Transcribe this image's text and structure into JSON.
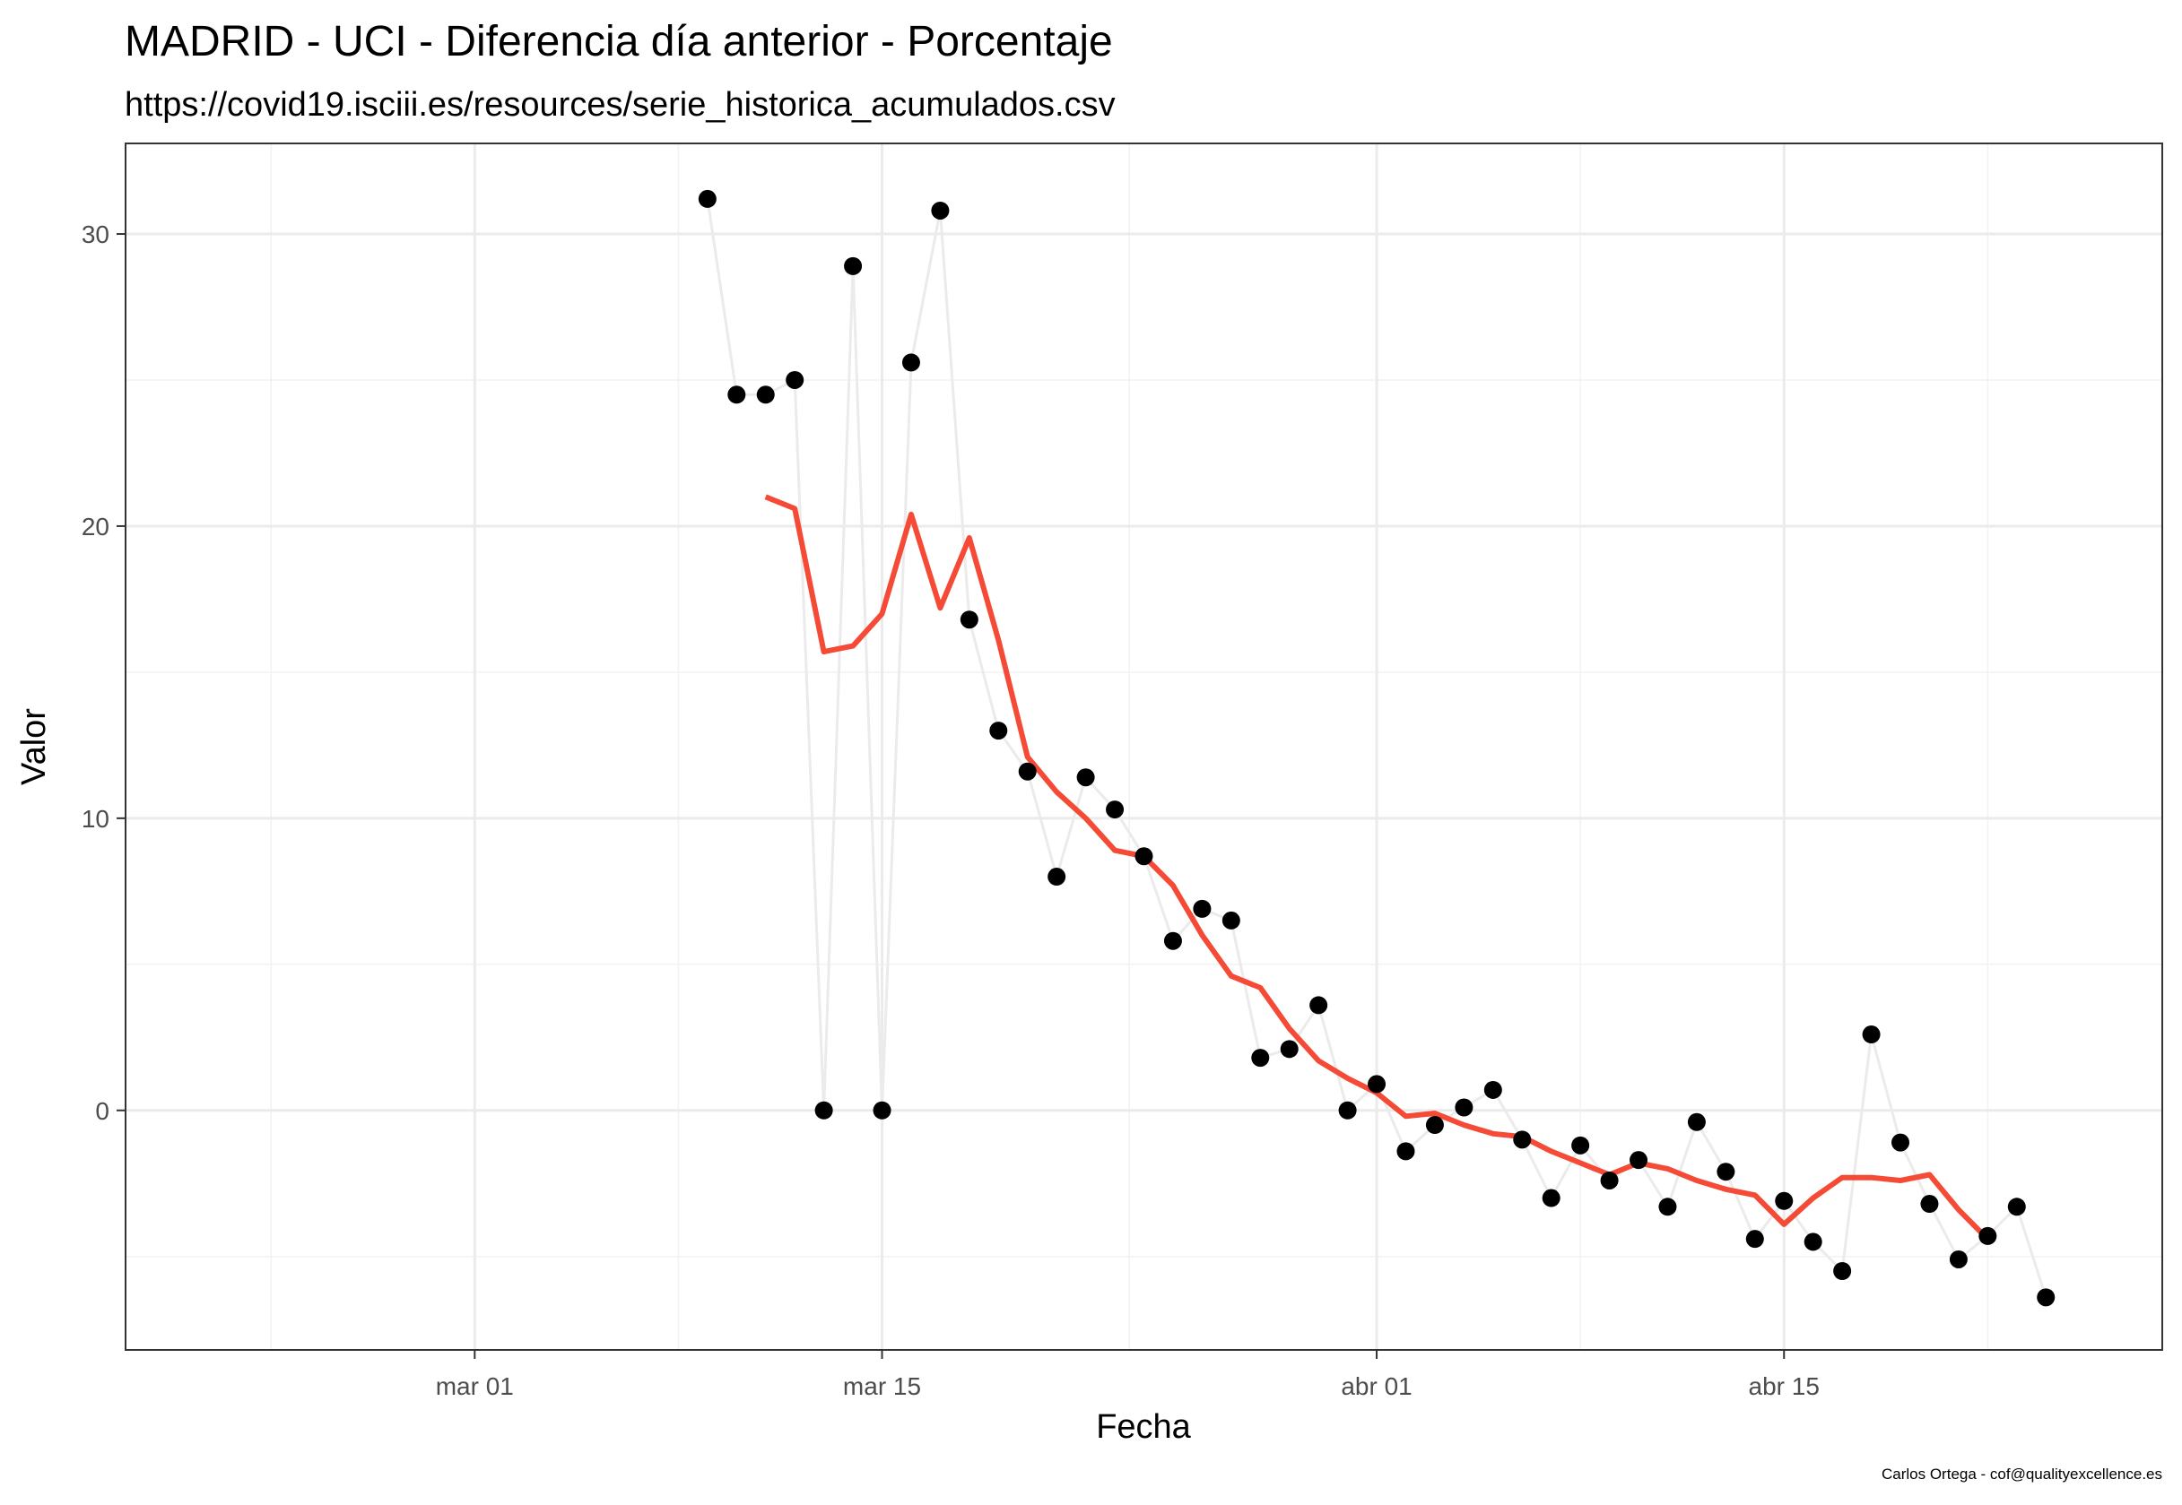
{
  "chart_data": {
    "type": "line",
    "title": "MADRID - UCI - Diferencia día anterior - Porcentaje",
    "subtitle": "https://covid19.isciii.es/resources/serie_historica_acumulados.csv",
    "xlabel": "Fecha",
    "ylabel": "Valor",
    "caption": "Carlos Ortega - cof@qualityexcellence.es",
    "x_ticks": [
      {
        "date": "2020-03-01",
        "label": "mar 01"
      },
      {
        "date": "2020-03-15",
        "label": "mar 15"
      },
      {
        "date": "2020-04-01",
        "label": "abr 01"
      },
      {
        "date": "2020-04-15",
        "label": "abr 15"
      }
    ],
    "y_ticks": [
      0,
      10,
      20,
      30
    ],
    "xlim": [
      "2020-02-18",
      "2020-04-28"
    ],
    "ylim": [
      -8.2,
      33.1
    ],
    "grid": true,
    "series": [
      {
        "color": "#000000",
        "line_color": "#ebebeb",
        "points": [
          {
            "x": "2020-03-09",
            "y": 31.2
          },
          {
            "x": "2020-03-10",
            "y": 24.5
          },
          {
            "x": "2020-03-11",
            "y": 24.5
          },
          {
            "x": "2020-03-12",
            "y": 25.0
          },
          {
            "x": "2020-03-13",
            "y": 0.0
          },
          {
            "x": "2020-03-14",
            "y": 28.9
          },
          {
            "x": "2020-03-15",
            "y": 0.0
          },
          {
            "x": "2020-03-16",
            "y": 25.6
          },
          {
            "x": "2020-03-17",
            "y": 30.8
          },
          {
            "x": "2020-03-18",
            "y": 16.8
          },
          {
            "x": "2020-03-19",
            "y": 13.0
          },
          {
            "x": "2020-03-20",
            "y": 11.6
          },
          {
            "x": "2020-03-21",
            "y": 8.0
          },
          {
            "x": "2020-03-22",
            "y": 11.4
          },
          {
            "x": "2020-03-23",
            "y": 10.3
          },
          {
            "x": "2020-03-24",
            "y": 8.7
          },
          {
            "x": "2020-03-25",
            "y": 5.8
          },
          {
            "x": "2020-03-26",
            "y": 6.9
          },
          {
            "x": "2020-03-27",
            "y": 6.5
          },
          {
            "x": "2020-03-28",
            "y": 1.8
          },
          {
            "x": "2020-03-29",
            "y": 2.1
          },
          {
            "x": "2020-03-30",
            "y": 3.6
          },
          {
            "x": "2020-03-31",
            "y": 0.0
          },
          {
            "x": "2020-04-01",
            "y": 0.9
          },
          {
            "x": "2020-04-02",
            "y": -1.4
          },
          {
            "x": "2020-04-03",
            "y": -0.5
          },
          {
            "x": "2020-04-04",
            "y": 0.1
          },
          {
            "x": "2020-04-05",
            "y": 0.7
          },
          {
            "x": "2020-04-06",
            "y": -1.0
          },
          {
            "x": "2020-04-07",
            "y": -3.0
          },
          {
            "x": "2020-04-08",
            "y": -1.2
          },
          {
            "x": "2020-04-09",
            "y": -2.4
          },
          {
            "x": "2020-04-10",
            "y": -1.7
          },
          {
            "x": "2020-04-11",
            "y": -3.3
          },
          {
            "x": "2020-04-12",
            "y": -0.4
          },
          {
            "x": "2020-04-13",
            "y": -2.1
          },
          {
            "x": "2020-04-14",
            "y": -4.4
          },
          {
            "x": "2020-04-15",
            "y": -3.1
          },
          {
            "x": "2020-04-16",
            "y": -4.5
          },
          {
            "x": "2020-04-17",
            "y": -5.5
          },
          {
            "x": "2020-04-18",
            "y": 2.6
          },
          {
            "x": "2020-04-19",
            "y": -1.1
          },
          {
            "x": "2020-04-20",
            "y": -3.2
          },
          {
            "x": "2020-04-21",
            "y": -5.1
          },
          {
            "x": "2020-04-22",
            "y": -4.3
          },
          {
            "x": "2020-04-23",
            "y": -3.3
          },
          {
            "x": "2020-04-24",
            "y": -6.4
          }
        ]
      },
      {
        "color": "#f44a36",
        "points": [
          {
            "x": "2020-03-11",
            "y": 21.0
          },
          {
            "x": "2020-03-12",
            "y": 20.6
          },
          {
            "x": "2020-03-13",
            "y": 15.7
          },
          {
            "x": "2020-03-14",
            "y": 15.9
          },
          {
            "x": "2020-03-15",
            "y": 17.0
          },
          {
            "x": "2020-03-16",
            "y": 20.4
          },
          {
            "x": "2020-03-17",
            "y": 17.2
          },
          {
            "x": "2020-03-18",
            "y": 19.6
          },
          {
            "x": "2020-03-19",
            "y": 16.1
          },
          {
            "x": "2020-03-20",
            "y": 12.1
          },
          {
            "x": "2020-03-21",
            "y": 10.9
          },
          {
            "x": "2020-03-22",
            "y": 10.0
          },
          {
            "x": "2020-03-23",
            "y": 8.9
          },
          {
            "x": "2020-03-24",
            "y": 8.7
          },
          {
            "x": "2020-03-25",
            "y": 7.7
          },
          {
            "x": "2020-03-26",
            "y": 6.0
          },
          {
            "x": "2020-03-27",
            "y": 4.6
          },
          {
            "x": "2020-03-28",
            "y": 4.2
          },
          {
            "x": "2020-03-29",
            "y": 2.8
          },
          {
            "x": "2020-03-30",
            "y": 1.7
          },
          {
            "x": "2020-03-31",
            "y": 1.1
          },
          {
            "x": "2020-04-01",
            "y": 0.6
          },
          {
            "x": "2020-04-02",
            "y": -0.2
          },
          {
            "x": "2020-04-03",
            "y": -0.1
          },
          {
            "x": "2020-04-04",
            "y": -0.5
          },
          {
            "x": "2020-04-05",
            "y": -0.8
          },
          {
            "x": "2020-04-06",
            "y": -0.9
          },
          {
            "x": "2020-04-07",
            "y": -1.4
          },
          {
            "x": "2020-04-08",
            "y": -1.8
          },
          {
            "x": "2020-04-09",
            "y": -2.2
          },
          {
            "x": "2020-04-10",
            "y": -1.8
          },
          {
            "x": "2020-04-11",
            "y": -2.0
          },
          {
            "x": "2020-04-12",
            "y": -2.4
          },
          {
            "x": "2020-04-13",
            "y": -2.7
          },
          {
            "x": "2020-04-14",
            "y": -2.9
          },
          {
            "x": "2020-04-15",
            "y": -3.9
          },
          {
            "x": "2020-04-16",
            "y": -3.0
          },
          {
            "x": "2020-04-17",
            "y": -2.3
          },
          {
            "x": "2020-04-18",
            "y": -2.3
          },
          {
            "x": "2020-04-19",
            "y": -2.4
          },
          {
            "x": "2020-04-20",
            "y": -2.2
          },
          {
            "x": "2020-04-21",
            "y": -3.4
          },
          {
            "x": "2020-04-22",
            "y": -4.4
          }
        ]
      }
    ]
  }
}
